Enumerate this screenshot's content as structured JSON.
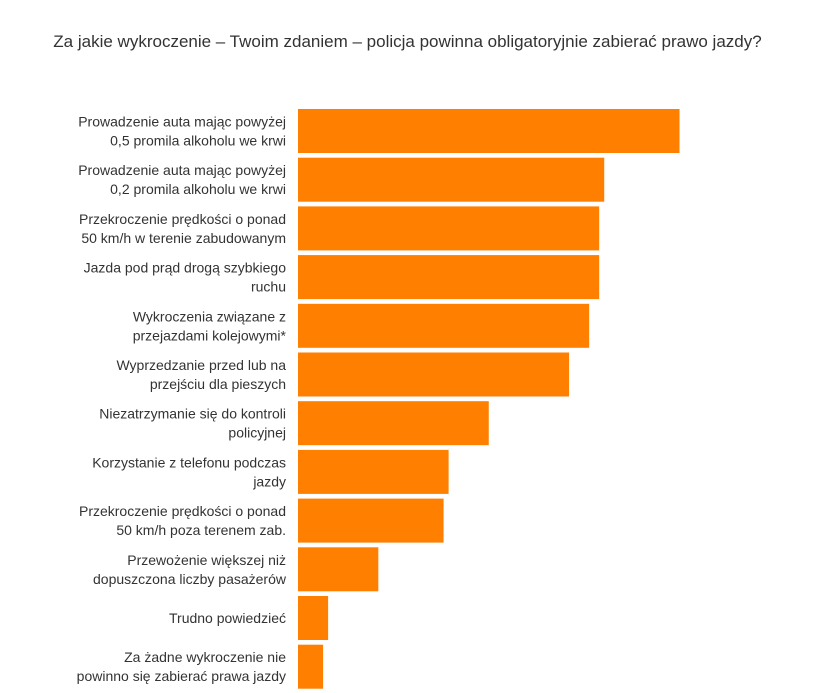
{
  "chart_data": {
    "type": "bar",
    "orientation": "horizontal",
    "title": "Za jakie wykroczenie – Twoim zdaniem – policja powinna obligatoryjnie zabierać prawo jazdy?",
    "xlabel": "",
    "ylabel": "",
    "grid": false,
    "legend": "none",
    "xlim": [
      0,
      100
    ],
    "categories": [
      [
        "Prowadzenie auta mając powyżej",
        "0,5 promila alkoholu we krwi"
      ],
      [
        "Prowadzenie auta mając powyżej",
        "0,2 promila alkoholu we krwi"
      ],
      [
        "Przekroczenie prędkości o ponad",
        "50 km/h w terenie zabudowanym"
      ],
      [
        "Jazda pod prąd drogą szybkiego",
        "ruchu"
      ],
      [
        "Wykroczenia związane z",
        "przejazdami kolejowymi*"
      ],
      [
        "Wyprzedzanie przed lub na",
        "przejściu dla pieszych"
      ],
      [
        "Niezatrzymanie się do kontroli",
        "policyjnej"
      ],
      [
        "Korzystanie z telefonu podczas",
        "jazdy"
      ],
      [
        "Przekroczenie prędkości o ponad",
        "50 km/h poza terenem zab."
      ],
      [
        "Przewożenie większej niż",
        "dopuszczona liczby pasażerów"
      ],
      [
        "Trudno powiedzieć"
      ],
      [
        "Za żadne wykroczenie nie",
        "powinno się zabierać prawa jazdy"
      ]
    ],
    "values": [
      76,
      61,
      60,
      60,
      58,
      54,
      38,
      30,
      29,
      16,
      6,
      5
    ],
    "bar_color": "#FF7F00"
  }
}
